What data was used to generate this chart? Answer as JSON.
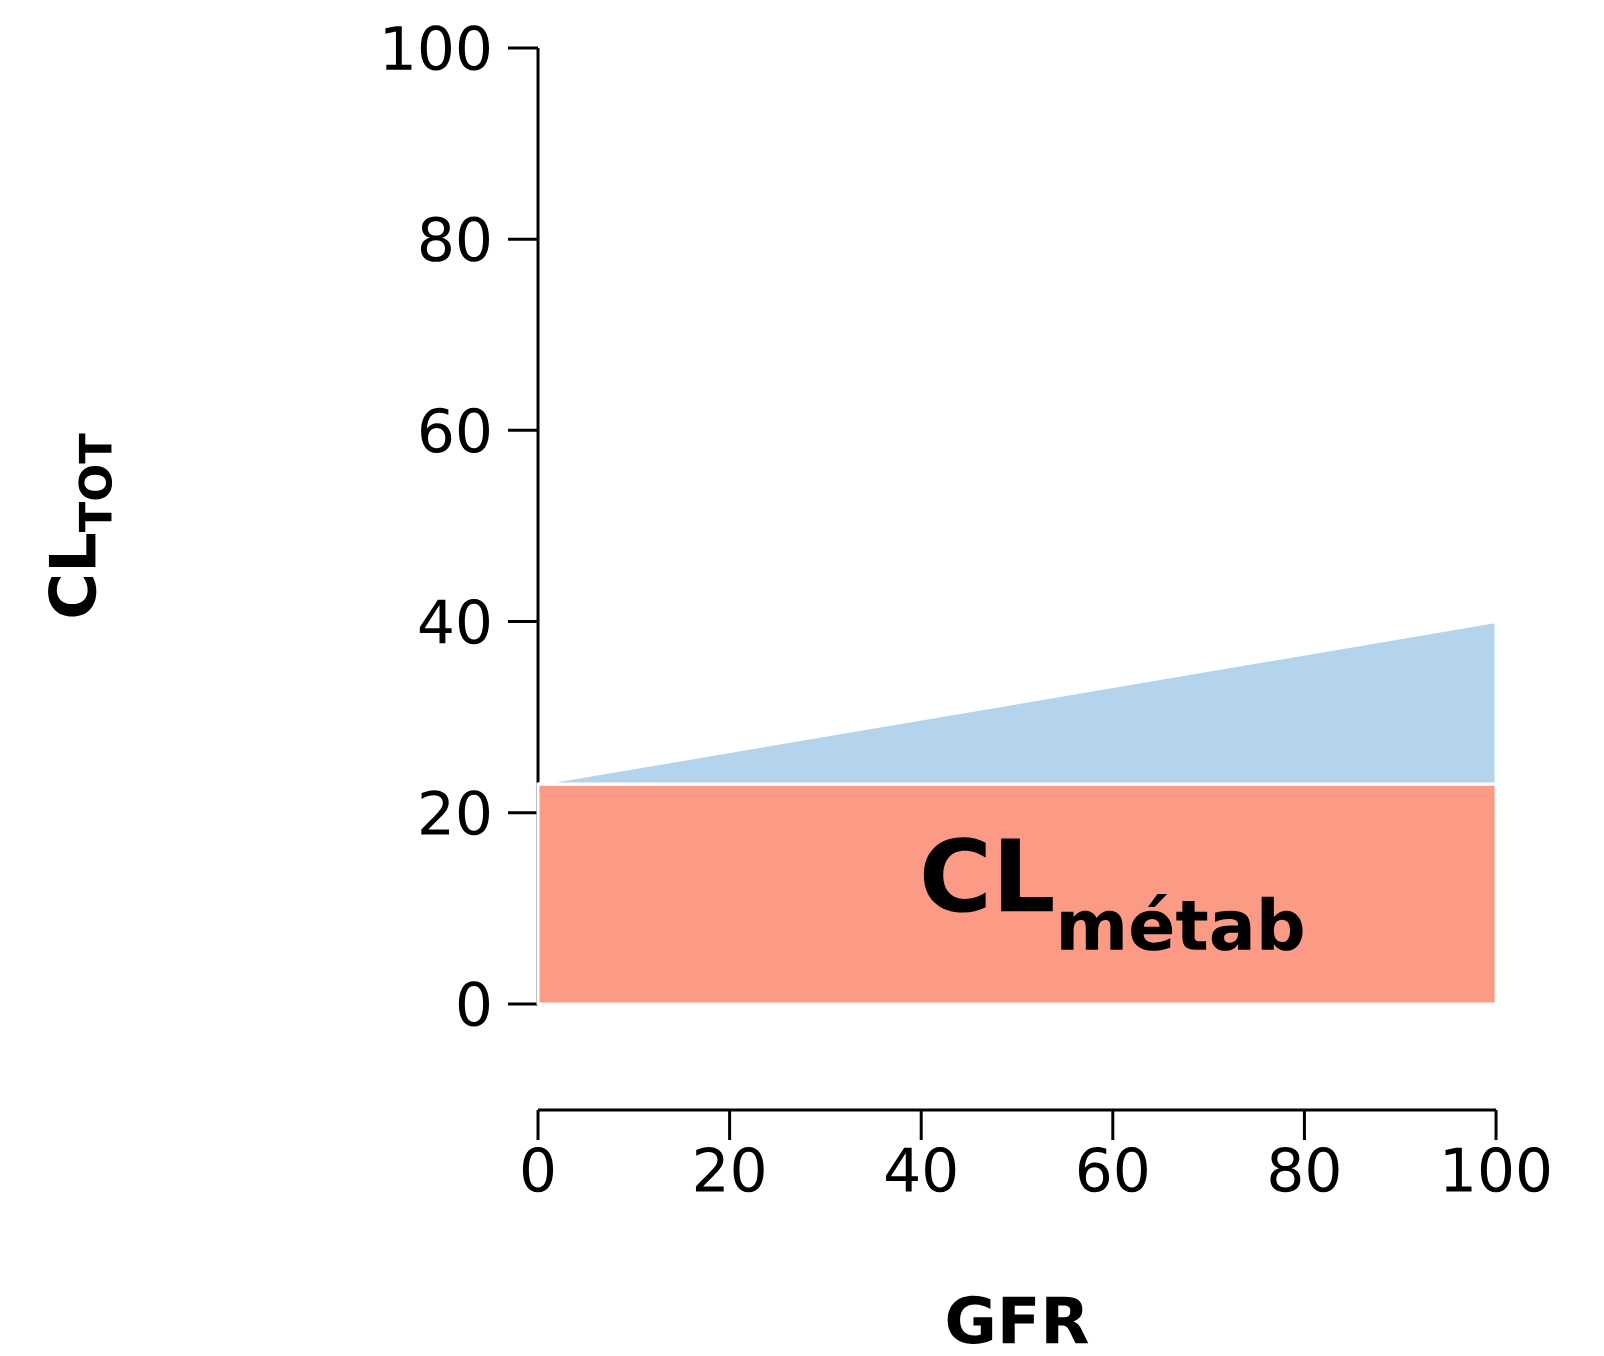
{
  "chart_data": {
    "type": "area",
    "xlabel": "GFR",
    "ylabel": "CL$_{TOT}$",
    "x": [
      0,
      100
    ],
    "stacked": true,
    "series": [
      {
        "name": "CL$_{métab}$",
        "color": "#fb9a85",
        "values": [
          23,
          23
        ]
      },
      {
        "color": "#b3d4ec",
        "values": [
          0,
          17
        ]
      }
    ],
    "xlim": [
      0,
      100
    ],
    "ylim": [
      0,
      100
    ],
    "xticks": [
      0,
      20,
      40,
      60,
      80,
      100
    ],
    "yticks": [
      0,
      20,
      40,
      60,
      80,
      100
    ]
  }
}
